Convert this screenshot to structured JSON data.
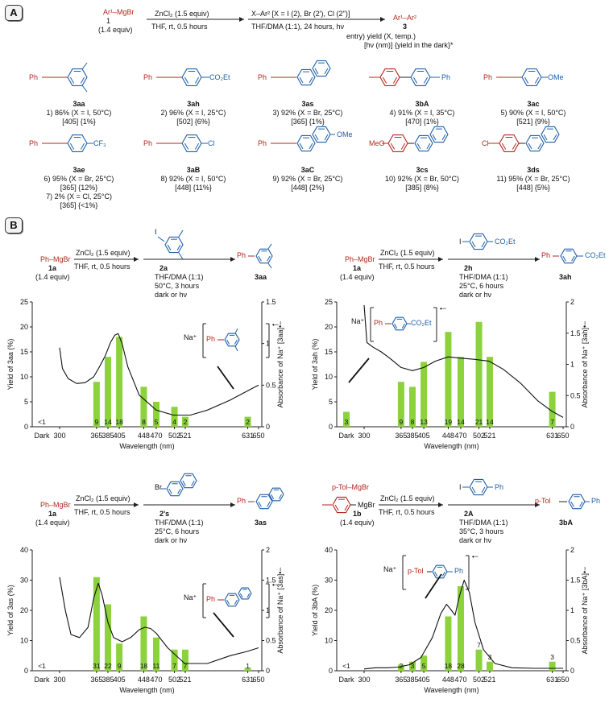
{
  "panel_a": {
    "label": "A",
    "scheme": {
      "reagent": "Ar¹–MgBr",
      "reagent_num": "1",
      "reagent_equiv": "(1.4 equiv)",
      "step1_top": "ZnCl₂ (1.5 equiv)",
      "step1_bottom": "THF, rt, 0.5 hours",
      "step2_top": "X–Ar² [X = I (2), Br (2'), Cl (2'')]",
      "step2_bottom": "THF/DMA (1:1), 24 hours, hν",
      "product": "Ar¹–Ar²",
      "product_num": "3",
      "legend1": "entry) yield (X, temp.)",
      "legend2": "[hν (nm)] {yield in the dark}*"
    },
    "compounds": [
      {
        "id": "3aa",
        "lines": [
          "1) 86% (X = I, 50°C)",
          "[405] {1%}"
        ]
      },
      {
        "id": "3ah",
        "lines": [
          "2) 96% (X = I, 25°C)",
          "[502] {6%}"
        ]
      },
      {
        "id": "3as",
        "lines": [
          "3) 92% (X = Br, 25°C)",
          "[365] {1%}"
        ]
      },
      {
        "id": "3bA",
        "lines": [
          "4) 91% (X = I, 35°C)",
          "[470] {1%}"
        ]
      },
      {
        "id": "3ac",
        "lines": [
          "5) 90% (X = I, 50°C)",
          "[521] {9%}"
        ]
      },
      {
        "id": "3ae",
        "lines": [
          "6) 95% (X = Br, 25°C)",
          "[365] {12%}",
          "7) 2% (X = Cl, 25°C)",
          "[365] {<1%}"
        ]
      },
      {
        "id": "3aB",
        "lines": [
          "8) 92% (X = I, 50°C)",
          "[448] {11%}"
        ]
      },
      {
        "id": "3aC",
        "lines": [
          "9) 92% (X = Br, 25°C)",
          "[448] {2%}"
        ]
      },
      {
        "id": "3cs",
        "lines": [
          "10) 92% (X = Br, 50°C)",
          "[385] {8%}"
        ]
      },
      {
        "id": "3ds",
        "lines": [
          "11) 95% (X = Br, 25°C)",
          "[448] {5%}"
        ]
      }
    ],
    "subst": {
      "ph": "Ph",
      "co2et": "CO₂Et",
      "ome": "OMe",
      "cf3": "CF₃",
      "cl": "Cl",
      "meo": "MeO"
    }
  },
  "panel_b": {
    "label": "B",
    "colors": {
      "bar": "#8cd23c",
      "curve": "#111111"
    },
    "x_label": "Wavelength (nm)",
    "x_ticks": [
      "Dark",
      "300",
      "365",
      "385",
      "405",
      "448",
      "470",
      "502",
      "521",
      "631",
      "650"
    ],
    "schemes": [
      {
        "reagent": "Ph–MgBr",
        "reagent_num": "1a",
        "equiv": "(1.4 equiv)",
        "s1_top": "ZnCl₂ (1.5 equiv)",
        "s1_bottom": "THF, rt, 0.5 hours",
        "halide_label": "2a",
        "cond": [
          "THF/DMA (1:1)",
          "50°C, 3 hours",
          "dark or hν"
        ],
        "product": "3aa",
        "radical": "Na⁺"
      },
      {
        "reagent": "Ph–MgBr",
        "reagent_num": "1a",
        "equiv": "(1.4 equiv)",
        "s1_top": "ZnCl₂ (1.5 equiv)",
        "s1_bottom": "THF, rt, 0.5 hours",
        "halide_label": "2h",
        "cond": [
          "THF/DMA (1:1)",
          "25°C, 6 hours",
          "dark or hν"
        ],
        "product": "3ah",
        "radical": "Na⁺"
      },
      {
        "reagent": "Ph–MgBr",
        "reagent_num": "1a",
        "equiv": "(1.4 equiv)",
        "s1_top": "ZnCl₂ (1.5 equiv)",
        "s1_bottom": "THF, rt, 0.5 hours",
        "halide_label": "2's",
        "cond": [
          "THF/DMA (1:1)",
          "25°C, 6 hours",
          "dark or hν"
        ],
        "product": "3as",
        "radical": "Na⁺"
      },
      {
        "reagent": "MgBr",
        "reagent_num": "1b",
        "equiv": "(1.4 equiv)",
        "s1_top": "ZnCl₂ (1.5 equiv)",
        "s1_bottom": "THF, rt, 0.5 hours",
        "halide_label": "2A",
        "cond": [
          "THF/DMA (1:1)",
          "35°C, 3 hours",
          "dark or hν"
        ],
        "product": "3bA",
        "radical": "Na⁺",
        "tol": "p-Tol–MgBr",
        "tol_product": "p-Tol",
        "tol_radical": "p-Tol"
      }
    ]
  },
  "chart_data": [
    {
      "type": "bar",
      "title": "",
      "product": "3aa",
      "xlabel": "Wavelength (nm)",
      "ylabel": "Yield of 3aa (%)",
      "ylabel2": "Absorbance of Na⁺ [3aa]•−",
      "categories": [
        "Dark",
        "365",
        "385",
        "405",
        "448",
        "470",
        "502",
        "521",
        "631"
      ],
      "values": [
        0.5,
        9,
        14,
        18,
        8,
        5,
        4,
        2,
        2
      ],
      "value_labels": [
        "<1",
        "9",
        "14",
        "18",
        "8",
        "5",
        "4",
        "2",
        "2"
      ],
      "ylim": [
        0,
        25
      ],
      "yticks": [
        0,
        5,
        10,
        15,
        20,
        25
      ],
      "y2lim": [
        0,
        1.5
      ],
      "y2ticks": [
        "0",
        "0.5",
        "1",
        "1.5"
      ],
      "absorbance": {
        "x": [
          300,
          305,
          315,
          330,
          345,
          360,
          370,
          380,
          390,
          397,
          403,
          410,
          420,
          440,
          470,
          500,
          530,
          560,
          600,
          630,
          650
        ],
        "y": [
          0.95,
          0.7,
          0.58,
          0.52,
          0.53,
          0.6,
          0.72,
          0.85,
          1.02,
          1.1,
          1.12,
          1.0,
          0.72,
          0.38,
          0.2,
          0.14,
          0.14,
          0.2,
          0.32,
          0.43,
          0.5
        ]
      }
    },
    {
      "type": "bar",
      "title": "",
      "product": "3ah",
      "xlabel": "Wavelength (nm)",
      "ylabel": "Yield of 3ah (%)",
      "ylabel2": "Absorbance of Na⁺ [3ah]•−",
      "categories": [
        "Dark",
        "365",
        "385",
        "405",
        "448",
        "470",
        "502",
        "521",
        "631"
      ],
      "values": [
        3,
        9,
        8,
        13,
        19,
        14,
        21,
        14,
        7
      ],
      "value_labels": [
        "3",
        "9",
        "8",
        "13",
        "19",
        "14",
        "21",
        "14",
        "7"
      ],
      "ylim": [
        0,
        25
      ],
      "yticks": [
        0,
        5,
        10,
        15,
        20,
        25
      ],
      "y2lim": [
        0,
        2
      ],
      "y2ticks": [
        "0",
        "0.5",
        "1",
        "1.5",
        "2"
      ],
      "absorbance": {
        "x": [
          300,
          305,
          315,
          330,
          345,
          365,
          385,
          405,
          425,
          448,
          470,
          495,
          520,
          545,
          575,
          605,
          630,
          650
        ],
        "y": [
          1.95,
          1.35,
          1.28,
          1.2,
          1.1,
          0.95,
          0.9,
          0.95,
          1.05,
          1.12,
          1.1,
          1.08,
          1.05,
          0.92,
          0.7,
          0.42,
          0.25,
          0.15
        ]
      }
    },
    {
      "type": "bar",
      "title": "",
      "product": "3as",
      "xlabel": "Wavelength (nm)",
      "ylabel": "Yield of 3as (%)",
      "ylabel2": "Absorbance of Na⁺ [3as]•−",
      "categories": [
        "Dark",
        "365",
        "385",
        "405",
        "448",
        "470",
        "502",
        "521",
        "631"
      ],
      "values": [
        0.5,
        31,
        22,
        9,
        18,
        11,
        7,
        7,
        1
      ],
      "value_labels": [
        "<1",
        "31",
        "22",
        "9",
        "18",
        "11",
        "7",
        "7",
        "1"
      ],
      "ylim": [
        0,
        40
      ],
      "yticks": [
        0,
        10,
        20,
        30,
        40
      ],
      "y2lim": [
        0,
        2
      ],
      "y2ticks": [
        "0",
        "0.5",
        "1",
        "1.5",
        "2"
      ],
      "absorbance": {
        "x": [
          300,
          310,
          320,
          335,
          350,
          360,
          368,
          375,
          385,
          395,
          410,
          425,
          440,
          450,
          460,
          470,
          490,
          520,
          560,
          600,
          630,
          650
        ],
        "y": [
          1.55,
          1.0,
          0.6,
          0.55,
          0.72,
          1.2,
          1.45,
          1.25,
          0.8,
          0.55,
          0.48,
          0.55,
          0.68,
          0.72,
          0.7,
          0.62,
          0.38,
          0.12,
          0.12,
          0.25,
          0.32,
          0.38
        ]
      }
    },
    {
      "type": "bar",
      "title": "",
      "product": "3bA",
      "xlabel": "Wavelength (nm)",
      "ylabel": "Yield of 3bA (%)",
      "ylabel2": "Absorbance of Na⁺ [3bA]•−",
      "categories": [
        "Dark",
        "365",
        "385",
        "405",
        "448",
        "470",
        "502",
        "521",
        "631"
      ],
      "values": [
        0.5,
        2,
        3,
        5,
        18,
        28,
        7,
        3,
        3
      ],
      "value_labels": [
        "<1",
        "2",
        "3",
        "5",
        "18",
        "28",
        "7",
        "3",
        "3"
      ],
      "ylim": [
        0,
        40
      ],
      "yticks": [
        0,
        10,
        20,
        30,
        40
      ],
      "y2lim": [
        0,
        2
      ],
      "y2ticks": [
        "0",
        "0.5",
        "1",
        "1.5",
        "2"
      ],
      "absorbance": {
        "x": [
          300,
          320,
          340,
          360,
          380,
          400,
          420,
          435,
          445,
          452,
          460,
          468,
          476,
          485,
          495,
          510,
          530,
          560,
          600,
          630,
          650
        ],
        "y": [
          0.03,
          0.05,
          0.05,
          0.06,
          0.1,
          0.22,
          0.55,
          0.95,
          1.1,
          1.02,
          0.92,
          1.25,
          1.5,
          1.3,
          0.8,
          0.35,
          0.12,
          0.05,
          0.04,
          0.04,
          0.04
        ]
      }
    }
  ]
}
